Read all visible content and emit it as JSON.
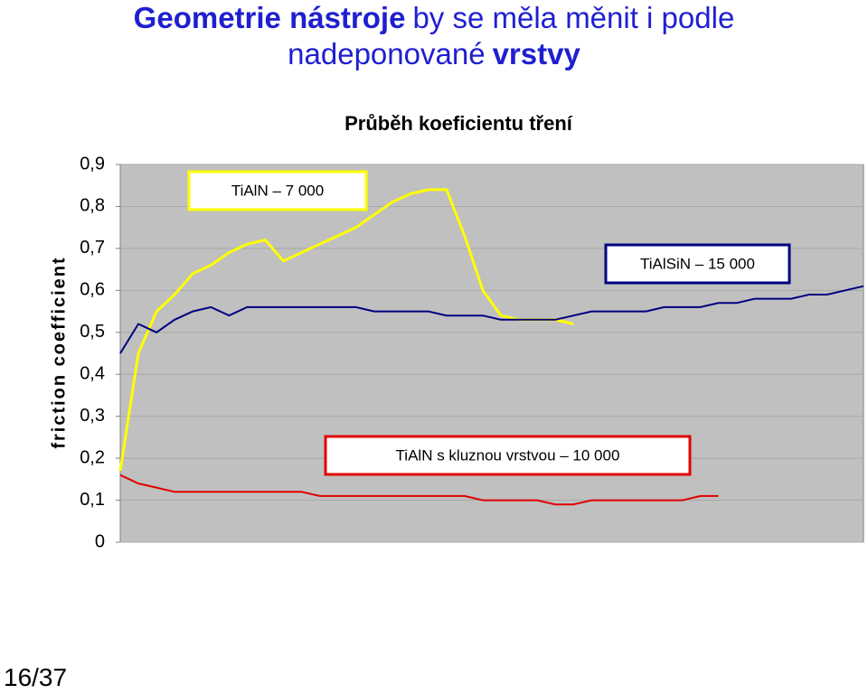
{
  "slide": {
    "heading": [
      {
        "text": "Geometrie nástroje",
        "bold": true
      },
      {
        "text": "by se měla měnit i podle",
        "bold": false
      },
      {
        "text": "nadeponované",
        "bold": false
      },
      {
        "text": "vrstvy",
        "bold": true
      }
    ],
    "page_number": "16/37"
  },
  "chart_data": {
    "type": "line",
    "title": "Průběh koeficientu tření",
    "ylabel": "friction coefficient",
    "plot_background": "#c0c0c0",
    "grid": true,
    "ylim": [
      0,
      0.9
    ],
    "yticks": [
      0,
      {
        "value": 0.1,
        "label": "0,1"
      },
      {
        "value": 0.2,
        "label": "0,2"
      },
      {
        "value": 0.3,
        "label": "0,3"
      },
      {
        "value": 0.4,
        "label": "0,4"
      },
      {
        "value": 0.5,
        "label": "0,5"
      },
      {
        "value": 0.6,
        "label": "0,6"
      },
      {
        "value": 0.7,
        "label": "0,7"
      },
      {
        "value": 0.8,
        "label": "0,8"
      },
      {
        "value": 0.9,
        "label": "0,9"
      }
    ],
    "categories": [
      null,
      null,
      null,
      null,
      null,
      null,
      null,
      null,
      null,
      null,
      null,
      null,
      null,
      null,
      null,
      null,
      null,
      null,
      null,
      null,
      null,
      null,
      null,
      null,
      null,
      null,
      null,
      null,
      null,
      null,
      null,
      null,
      null,
      null,
      null,
      null,
      null,
      null,
      null,
      null,
      null,
      null
    ],
    "series": [
      {
        "name": "TiAlN – 7 000",
        "color": "#ffff00",
        "values": [
          0.17,
          0.45,
          0.55,
          0.59,
          0.64,
          0.66,
          0.69,
          0.71,
          0.72,
          0.67,
          0.69,
          0.71,
          0.73,
          0.75,
          0.78,
          0.81,
          0.83,
          0.84,
          0.84,
          0.73,
          0.6,
          0.54,
          0.53,
          0.53,
          0.53,
          0.52,
          null,
          null,
          null,
          null,
          null,
          null,
          null,
          null,
          null,
          null,
          null,
          null,
          null,
          null,
          null,
          null
        ]
      },
      {
        "name": "TiAlSiN – 15 000",
        "color": "#000080",
        "values": [
          0.45,
          0.52,
          0.5,
          0.53,
          0.55,
          0.56,
          0.54,
          0.56,
          0.56,
          0.56,
          0.56,
          0.56,
          0.56,
          0.56,
          0.55,
          0.55,
          0.55,
          0.55,
          0.54,
          0.54,
          0.54,
          0.53,
          0.53,
          0.53,
          0.53,
          0.54,
          0.55,
          0.55,
          0.55,
          0.55,
          0.56,
          0.56,
          0.56,
          0.57,
          0.57,
          0.58,
          0.58,
          0.58,
          0.59,
          0.59,
          0.6,
          0.61
        ]
      },
      {
        "name": "TiAlN s kluznou vrstvou – 10 000",
        "color": "#e00000",
        "values": [
          0.16,
          0.14,
          0.13,
          0.12,
          0.12,
          0.12,
          0.12,
          0.12,
          0.12,
          0.12,
          0.12,
          0.11,
          0.11,
          0.11,
          0.11,
          0.11,
          0.11,
          0.11,
          0.11,
          0.11,
          0.1,
          0.1,
          0.1,
          0.1,
          0.09,
          0.09,
          0.1,
          0.1,
          0.1,
          0.1,
          0.1,
          0.1,
          0.11,
          0.11,
          null,
          null,
          null,
          null,
          null,
          null,
          null,
          null
        ]
      }
    ]
  }
}
